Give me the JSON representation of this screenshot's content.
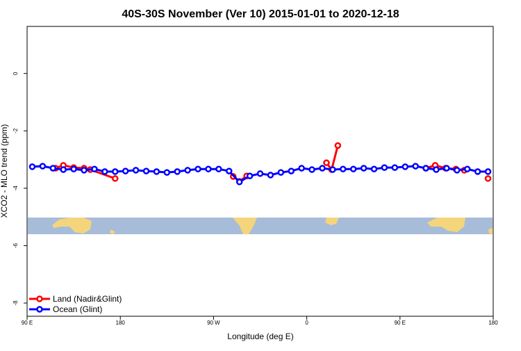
{
  "chart_data": {
    "type": "line",
    "title": "40S-30S November (Ver 10)   2015-01-01 to 2020-12-18",
    "x_label": "Longitude (deg E)",
    "y_label": "XCO2 - MLO trend (ppm)",
    "xlim": [
      90,
      540
    ],
    "ylim": [
      -8.46,
      1.64
    ],
    "xticks": [
      {
        "value": 90,
        "label": "90 E"
      },
      {
        "value": 180,
        "label": "180"
      },
      {
        "value": 270,
        "label": "90 W"
      },
      {
        "value": 360,
        "label": "0"
      },
      {
        "value": 450,
        "label": "90 E"
      },
      {
        "value": 540,
        "label": "180"
      }
    ],
    "yticks": [
      0,
      -2,
      -4,
      -6,
      -8
    ],
    "legend": "bottom-left",
    "series": [
      {
        "name": "Land (Nadir&Glint)",
        "color": "#ff0000",
        "x": [
          117.5,
          125,
          135,
          145,
          151,
          175,
          230,
          289,
          295,
          302,
          340,
          379,
          384,
          390,
          440,
          475,
          484,
          494,
          504,
          512,
          525,
          535
        ],
        "values": [
          -3.3,
          -3.2,
          -3.28,
          -3.3,
          -3.35,
          -3.66,
          null,
          -3.59,
          -3.76,
          -3.57,
          null,
          -3.11,
          -3.35,
          -2.51,
          null,
          -3.3,
          -3.2,
          -3.3,
          -3.33,
          -3.37,
          null,
          -3.66
        ]
      },
      {
        "name": "Ocean (Glint)",
        "color": "#0000ff",
        "x": [
          95,
          105,
          115,
          125,
          135,
          145,
          155,
          165,
          175,
          185,
          195,
          205,
          215,
          225,
          235,
          245,
          255,
          265,
          275,
          285,
          295,
          305,
          315,
          325,
          335,
          345,
          355,
          365,
          375,
          385,
          395,
          405,
          415,
          425,
          435,
          445,
          455,
          465,
          475,
          485,
          495,
          505,
          515,
          525,
          535
        ],
        "values": [
          -3.25,
          -3.23,
          -3.3,
          -3.35,
          -3.33,
          -3.37,
          -3.33,
          -3.42,
          -3.42,
          -3.4,
          -3.37,
          -3.4,
          -3.42,
          -3.45,
          -3.42,
          -3.37,
          -3.33,
          -3.33,
          -3.33,
          -3.4,
          -3.78,
          -3.57,
          -3.49,
          -3.54,
          -3.45,
          -3.4,
          -3.3,
          -3.35,
          -3.3,
          -3.35,
          -3.33,
          -3.33,
          -3.3,
          -3.33,
          -3.28,
          -3.28,
          -3.25,
          -3.23,
          -3.3,
          -3.35,
          -3.3,
          -3.37,
          -3.33,
          -3.42,
          -3.42
        ]
      }
    ]
  }
}
